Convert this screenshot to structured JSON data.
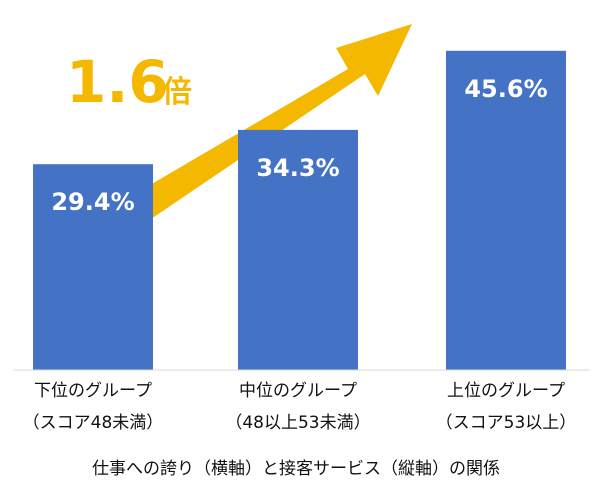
{
  "chart_data": {
    "type": "bar",
    "categories": [
      {
        "line1": "下位のグループ",
        "line2": "（スコア48未満）"
      },
      {
        "line1": "中位のグループ",
        "line2": "（48以上53未満）"
      },
      {
        "line1": "上位のグループ",
        "line2": "（スコア53以上）"
      }
    ],
    "values": [
      29.4,
      34.3,
      45.6
    ],
    "value_labels": [
      "29.4%",
      "34.3%",
      "45.6%"
    ],
    "bar_color": "#4472c4",
    "caption": "仕事への誇り（横軸）と接客サービス（縦軸）の関係",
    "ylim": [
      0,
      50
    ],
    "grid": false,
    "annotation": {
      "number": "1.6",
      "suffix": "倍",
      "color": "#f5b800",
      "shape": "up-right arrow"
    }
  }
}
